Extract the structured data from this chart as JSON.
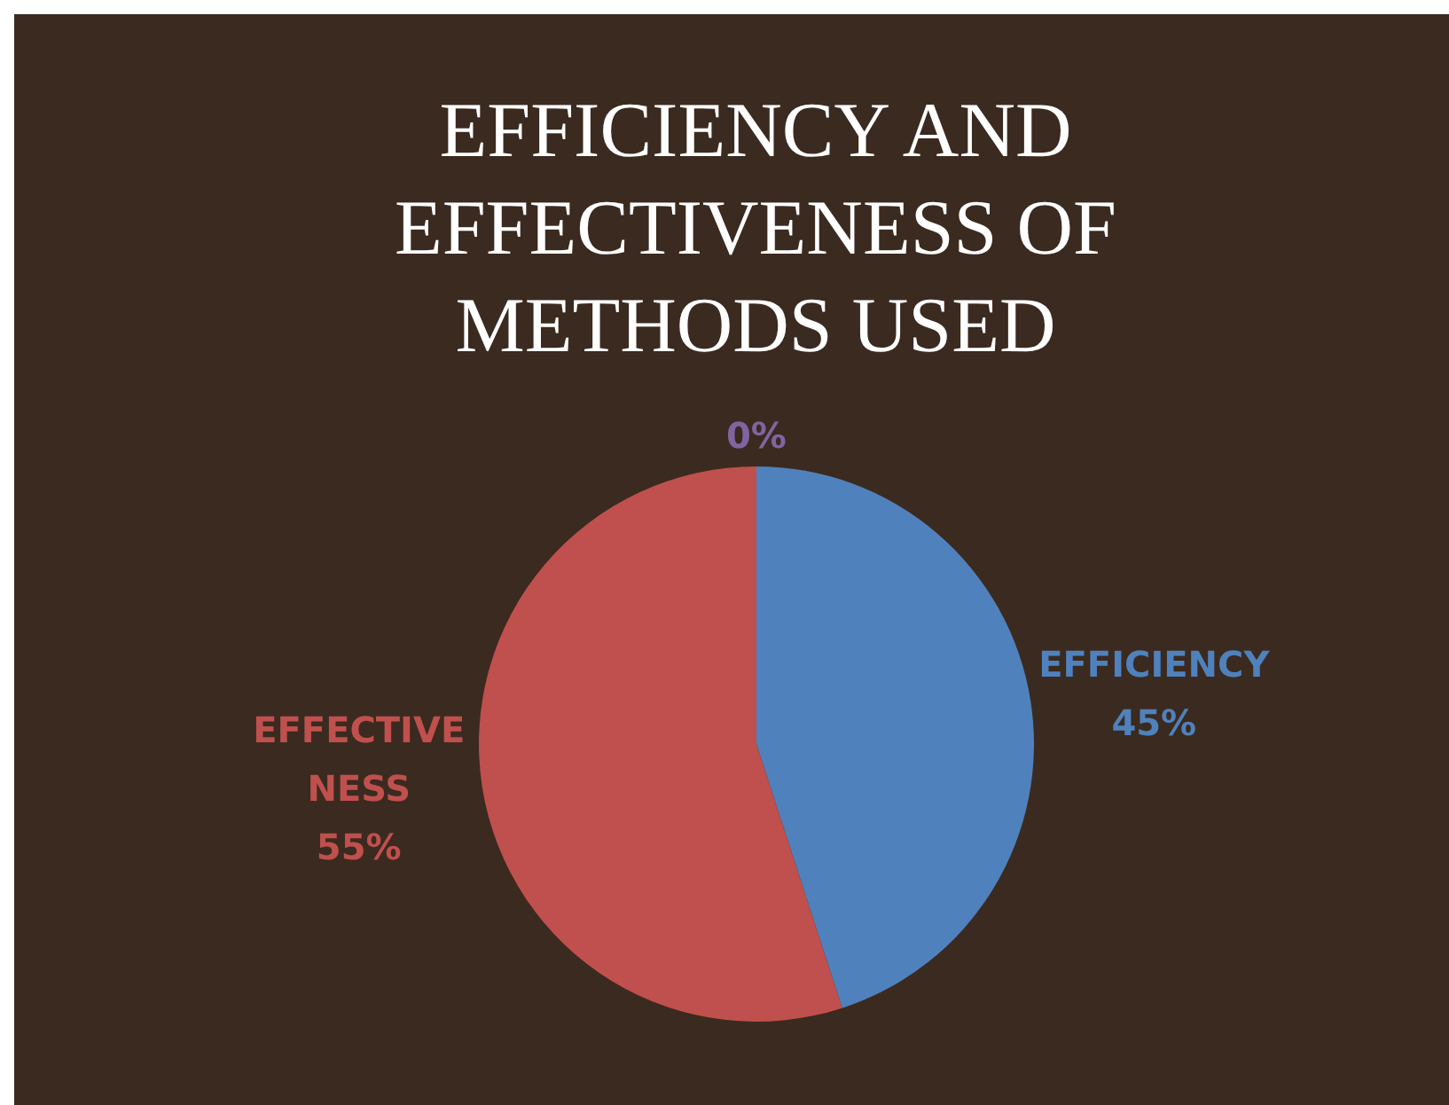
{
  "chart_data": {
    "type": "pie",
    "title": "EFFICIENCY AND EFFECTIVENESS OF METHODS USED",
    "categories": [
      "EFFICIENCY",
      "EFFECTIVE NESS",
      null
    ],
    "values": [
      45,
      55,
      0
    ],
    "colors": [
      "#4f81bd",
      "#c0504d",
      "#8064a2"
    ],
    "value_labels": [
      "45%",
      "55%",
      "0%"
    ],
    "legend": false
  }
}
